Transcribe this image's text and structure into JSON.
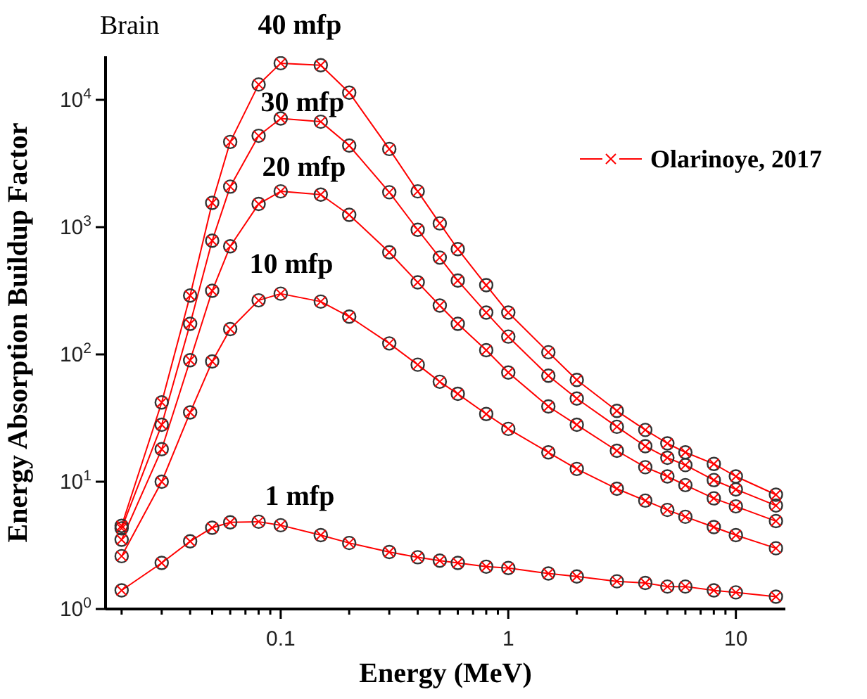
{
  "chart_data": {
    "type": "line",
    "title": "Brain",
    "xlabel": "Energy (MeV)",
    "ylabel": "Energy Absorption Buildup Factor",
    "log": "xy",
    "legend": "right",
    "x": [
      0.02,
      0.03,
      0.04,
      0.05,
      0.06,
      0.08,
      0.1,
      0.15,
      0.2,
      0.3,
      0.4,
      0.5,
      0.6,
      0.8,
      1,
      1.5,
      2,
      3,
      4,
      5,
      6,
      8,
      10,
      15
    ],
    "xlim": [
      0.017,
      16.5
    ],
    "xticks": [
      {
        "value": 0.02,
        "label": null
      },
      {
        "value": 0.03,
        "label": null
      },
      {
        "value": 0.04,
        "label": null
      },
      {
        "value": 0.05,
        "label": null
      },
      {
        "value": 0.06,
        "label": null
      },
      {
        "value": 0.07,
        "label": null
      },
      {
        "value": 0.08,
        "label": null
      },
      {
        "value": 0.09,
        "label": null
      },
      0.1,
      {
        "value": 0.2,
        "label": null
      },
      {
        "value": 0.3,
        "label": null
      },
      {
        "value": 0.4,
        "label": null
      },
      {
        "value": 0.5,
        "label": null
      },
      {
        "value": 0.6,
        "label": null
      },
      {
        "value": 0.7,
        "label": null
      },
      {
        "value": 0.8,
        "label": null
      },
      {
        "value": 0.9,
        "label": null
      },
      1,
      {
        "value": 2,
        "label": null
      },
      {
        "value": 3,
        "label": null
      },
      {
        "value": 4,
        "label": null
      },
      {
        "value": 5,
        "label": null
      },
      {
        "value": 6,
        "label": null
      },
      {
        "value": 7,
        "label": null
      },
      {
        "value": 8,
        "label": null
      },
      {
        "value": 9,
        "label": null
      },
      10
    ],
    "ylim": [
      1,
      22000
    ],
    "yticks": [
      {
        "value": 1,
        "label": "10$^{0}$"
      },
      {
        "value": 10,
        "label": "10$^{1}$"
      },
      {
        "value": 100,
        "label": "10$^{2}$"
      },
      {
        "value": 1000,
        "label": "10$^{3}$"
      },
      {
        "value": 10000,
        "label": "10$^{4}$"
      }
    ],
    "series": [
      {
        "type": "scatter",
        "marker": "circle",
        "color": "#333333",
        "values": [
          1.4,
          2.3,
          3.4,
          4.35,
          4.8,
          4.85,
          4.55,
          3.8,
          3.3,
          2.8,
          2.55,
          2.4,
          2.3,
          2.15,
          2.1,
          1.9,
          1.8,
          1.65,
          1.6,
          1.5,
          1.5,
          1.4,
          1.35,
          1.25
        ]
      },
      {
        "marker": "cross",
        "name": "Olarinoye, 2017",
        "color": "#ff0000",
        "values": [
          1.4,
          2.3,
          3.4,
          4.35,
          4.8,
          4.85,
          4.55,
          3.8,
          3.3,
          2.8,
          2.55,
          2.4,
          2.3,
          2.15,
          2.1,
          1.9,
          1.8,
          1.65,
          1.6,
          1.5,
          1.5,
          1.4,
          1.35,
          1.25
        ]
      },
      {
        "type": "scatter",
        "marker": "circle",
        "color": "#333333",
        "values": [
          2.6,
          10,
          35,
          88,
          158,
          266,
          300,
          260,
          198,
          122,
          83,
          61,
          49,
          34,
          26,
          17,
          12.6,
          8.8,
          7.1,
          6,
          5.3,
          4.4,
          3.8,
          3
        ]
      },
      {
        "marker": "cross",
        "color": "#ff0000",
        "values": [
          2.6,
          10,
          35,
          88,
          158,
          266,
          300,
          260,
          198,
          122,
          83,
          61,
          49,
          34,
          26,
          17,
          12.6,
          8.8,
          7.1,
          6,
          5.3,
          4.4,
          3.8,
          3
        ]
      },
      {
        "type": "scatter",
        "marker": "circle",
        "color": "#333333",
        "values": [
          3.5,
          18,
          90,
          316,
          707,
          1520,
          1910,
          1800,
          1250,
          634,
          368,
          242,
          174,
          108,
          72,
          39,
          28,
          17.5,
          13,
          11,
          9.4,
          7.4,
          6.4,
          4.9
        ]
      },
      {
        "marker": "cross",
        "color": "#ff0000",
        "values": [
          3.5,
          18,
          90,
          316,
          707,
          1520,
          1910,
          1800,
          1250,
          634,
          368,
          242,
          174,
          108,
          72,
          39,
          28,
          17.5,
          13,
          11,
          9.4,
          7.4,
          6.4,
          4.9
        ]
      },
      {
        "type": "scatter",
        "marker": "circle",
        "color": "#333333",
        "values": [
          4.3,
          28,
          174,
          783,
          2080,
          5220,
          7140,
          6730,
          4370,
          1880,
          953,
          576,
          380,
          213,
          138,
          68,
          45,
          27,
          19,
          15.4,
          13.5,
          10.3,
          8.7,
          6.5
        ]
      },
      {
        "marker": "cross",
        "color": "#ff0000",
        "values": [
          4.3,
          28,
          174,
          783,
          2080,
          5220,
          7140,
          6730,
          4370,
          1880,
          953,
          576,
          380,
          213,
          138,
          68,
          45,
          27,
          19,
          15.4,
          13.5,
          10.3,
          8.7,
          6.5
        ]
      },
      {
        "type": "scatter",
        "marker": "circle",
        "color": "#333333",
        "values": [
          4.5,
          42,
          290,
          1550,
          4670,
          13200,
          19400,
          18700,
          11400,
          4110,
          1910,
          1070,
          672,
          350,
          213,
          104,
          63,
          36,
          25.5,
          20,
          17,
          13.8,
          11,
          7.9
        ]
      },
      {
        "marker": "cross",
        "color": "#ff0000",
        "values": [
          4.5,
          42,
          290,
          1550,
          4670,
          13200,
          19400,
          18700,
          11400,
          4110,
          1910,
          1070,
          672,
          350,
          213,
          104,
          63,
          36,
          25.5,
          20,
          17,
          13.8,
          11,
          7.9
        ]
      }
    ],
    "annotations": [
      "40 mfp",
      "30 mfp",
      "20 mfp",
      "10 mfp",
      "1 mfp"
    ]
  }
}
